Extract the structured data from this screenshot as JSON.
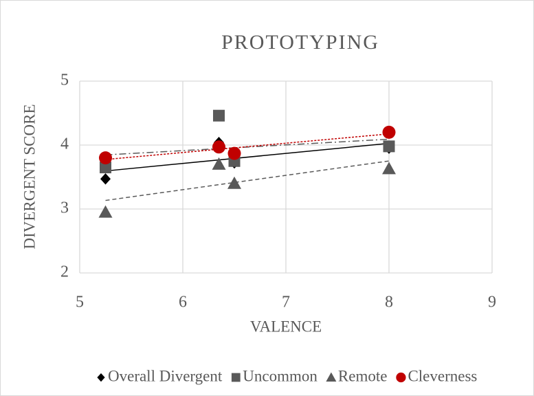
{
  "chart_data": {
    "type": "scatter",
    "title": "PROTOTYPING",
    "xlabel": "VALENCE",
    "ylabel": "DIVERGENT SCORE",
    "x": [
      5.25,
      6.35,
      6.5,
      8
    ],
    "xlim": [
      5,
      9
    ],
    "xticks": [
      5,
      6,
      7,
      8,
      9
    ],
    "ylim": [
      2,
      5
    ],
    "yticks": [
      2,
      3,
      4,
      5
    ],
    "grid": true,
    "legend": "bottom",
    "series": [
      {
        "name": "Overall Divergent",
        "color": "#000000",
        "marker": "diamond",
        "trendline": "solid",
        "values": [
          3.47,
          4.04,
          3.72,
          3.95
        ]
      },
      {
        "name": "Uncommon",
        "color": "#595959",
        "marker": "square",
        "trendline": "dashdot",
        "values": [
          3.65,
          4.46,
          3.75,
          3.98
        ]
      },
      {
        "name": "Remote",
        "color": "#595959",
        "marker": "triangle",
        "trendline": "dashed",
        "values": [
          2.95,
          3.7,
          3.4,
          3.63
        ]
      },
      {
        "name": "Cleverness",
        "color": "#c00000",
        "marker": "circle",
        "trendline": "dotted",
        "values": [
          3.8,
          3.97,
          3.87,
          4.2
        ]
      }
    ]
  }
}
